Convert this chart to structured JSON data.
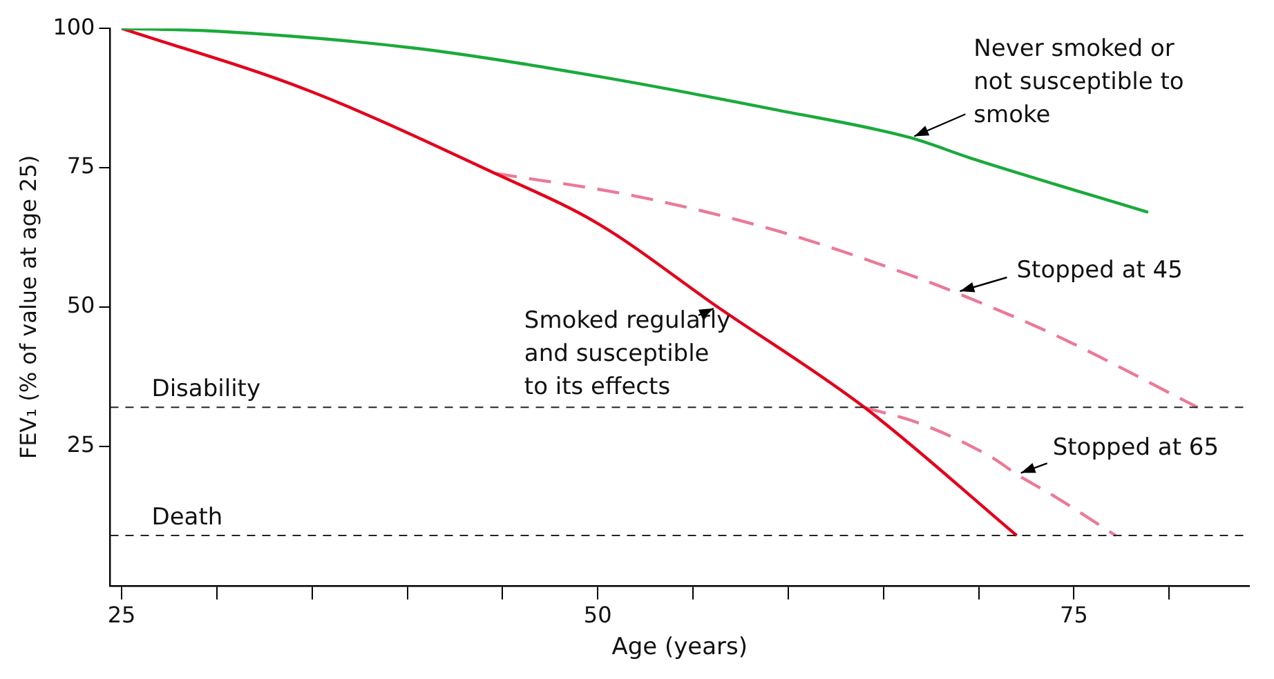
{
  "chart_data": {
    "type": "line",
    "xlabel": "Age (years)",
    "ylabel": "FEV₁ (% of value at age 25)",
    "xlim": [
      24.4,
      84.2
    ],
    "ylim": [
      0,
      100
    ],
    "xticks": [
      25,
      {
        "value": 30,
        "label": null
      },
      {
        "value": 35,
        "label": null
      },
      {
        "value": 40,
        "label": null
      },
      {
        "value": 45,
        "label": null
      },
      50,
      {
        "value": 55,
        "label": null
      },
      {
        "value": 60,
        "label": null
      },
      {
        "value": 65,
        "label": null
      },
      {
        "value": 70,
        "label": null
      },
      75,
      {
        "value": 80,
        "label": null
      }
    ],
    "yticks": [
      25,
      50,
      75,
      100
    ],
    "grid": false,
    "legend": false,
    "marker": "none",
    "series": [
      {
        "name": "Never smoked or\nnot susceptible to\nsmoke",
        "color": "#1aaa3a",
        "line_style": "solid",
        "x": [
          25,
          30,
          40.3,
          50,
          59.5,
          66.4,
          69.6,
          78.9
        ],
        "values": [
          100,
          99.5,
          96.5,
          91.4,
          85.3,
          80.4,
          76.7,
          67
        ]
      },
      {
        "name": "Smoked regularly\nand susceptible\nto its effects",
        "color": "#e3001b",
        "line_style": "solid",
        "x": [
          25,
          34.7,
          44.6,
          50,
          56.3,
          64,
          72
        ],
        "values": [
          100,
          89,
          74,
          65,
          50,
          32,
          9
        ]
      },
      {
        "name": "Stopped at 45",
        "color": "#eb7a96",
        "line_style": "dashed",
        "x": [
          44.6,
          52,
          59.5,
          67,
          68.8,
          74,
          81.5
        ],
        "values": [
          74,
          69.9,
          63.6,
          55,
          52.6,
          45,
          32
        ]
      },
      {
        "name": "Stopped at 65",
        "color": "#eb7a96",
        "line_style": "dashed",
        "x": [
          64,
          67,
          70.7,
          72,
          74,
          77.2
        ],
        "values": [
          32,
          29,
          23,
          20,
          16,
          9
        ]
      }
    ],
    "ref_lines": [
      {
        "axis": "y",
        "value": 32,
        "label": "Disability",
        "color": "#222222",
        "line_style": "dashed"
      },
      {
        "axis": "y",
        "value": 9,
        "label": "Death",
        "color": "#222222",
        "line_style": "dashed"
      }
    ]
  }
}
